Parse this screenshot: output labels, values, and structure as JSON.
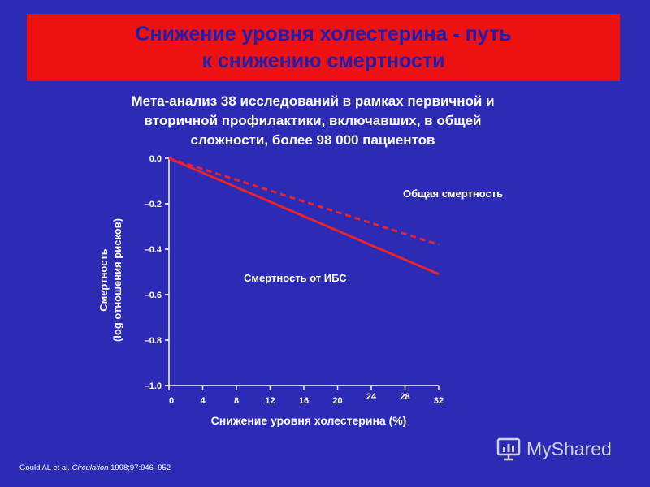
{
  "slide": {
    "title_line1": "Снижение уровня холестерина - путь",
    "title_line2": "к снижению смертности",
    "subtitle_lines": [
      "Мета-анализ 38 исследований в рамках первичной и",
      "вторичной профилактики, включавших, в общей",
      "сложности, более 98 000 пациентов"
    ],
    "citation_authors": "Gould AL et al. ",
    "citation_journal": "Circulation",
    "citation_details": " 1998;97:946–952",
    "watermark_text": "MyShared"
  },
  "colors": {
    "background": "#2b2bb5",
    "title_bar": "#ee1111",
    "title_text": "#1e1eb0",
    "series": "#e8232b"
  },
  "chart_data": {
    "type": "line",
    "title": "",
    "xlabel": "Снижение уровня холестерина (%)",
    "ylabel_line1": "Смертность",
    "ylabel_line2": "(log отношения рисков)",
    "xlim": [
      0,
      32
    ],
    "ylim": [
      -1.0,
      0.0
    ],
    "x_ticks": [
      0,
      4,
      8,
      12,
      16,
      20,
      24,
      28,
      32
    ],
    "y_ticks": [
      0.0,
      -0.2,
      -0.4,
      -0.6,
      -0.8,
      -1.0
    ],
    "y_tick_labels": [
      "0.0",
      "–0.2",
      "–0.4",
      "–0.6",
      "–0.8",
      "–1.0"
    ],
    "grid": false,
    "series": [
      {
        "name": "Общая смертность",
        "style": "dashed",
        "x": [
          0,
          32
        ],
        "y": [
          0.0,
          -0.38
        ]
      },
      {
        "name": "Смертность от ИБС",
        "style": "solid",
        "x": [
          0,
          32
        ],
        "y": [
          0.0,
          -0.51
        ]
      }
    ]
  }
}
